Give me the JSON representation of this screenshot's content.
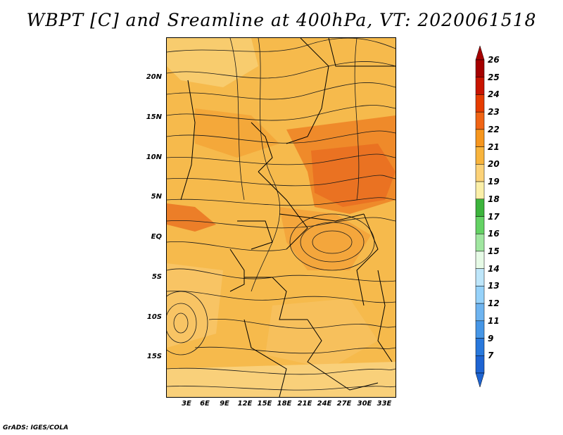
{
  "title": "WBPT [C] and Sreamline at 400hPa, VT: 2020061518",
  "footer": "GrADS: IGES/COLA",
  "lat_labels": [
    "20N",
    "15N",
    "10N",
    "5N",
    "EQ",
    "5S",
    "10S",
    "15S"
  ],
  "lon_labels": [
    "3E",
    "6E",
    "9E",
    "12E",
    "15E",
    "18E",
    "21E",
    "24E",
    "27E",
    "30E",
    "33E"
  ],
  "colorbar": {
    "labels": [
      "26",
      "25",
      "24",
      "23",
      "22",
      "21",
      "20",
      "19",
      "18",
      "17",
      "16",
      "15",
      "14",
      "13",
      "12",
      "11",
      "9",
      "7"
    ],
    "colors": [
      "#a50000",
      "#c81400",
      "#e63c00",
      "#f06414",
      "#f6961e",
      "#f8b43c",
      "#fcd278",
      "#fbefa8",
      "#3cb43c",
      "#64d264",
      "#a0e6a0",
      "#e6fae6",
      "#bee6fa",
      "#96d2fa",
      "#6eb4f0",
      "#4696e6",
      "#2878dc",
      "#1e64d2"
    ]
  }
}
